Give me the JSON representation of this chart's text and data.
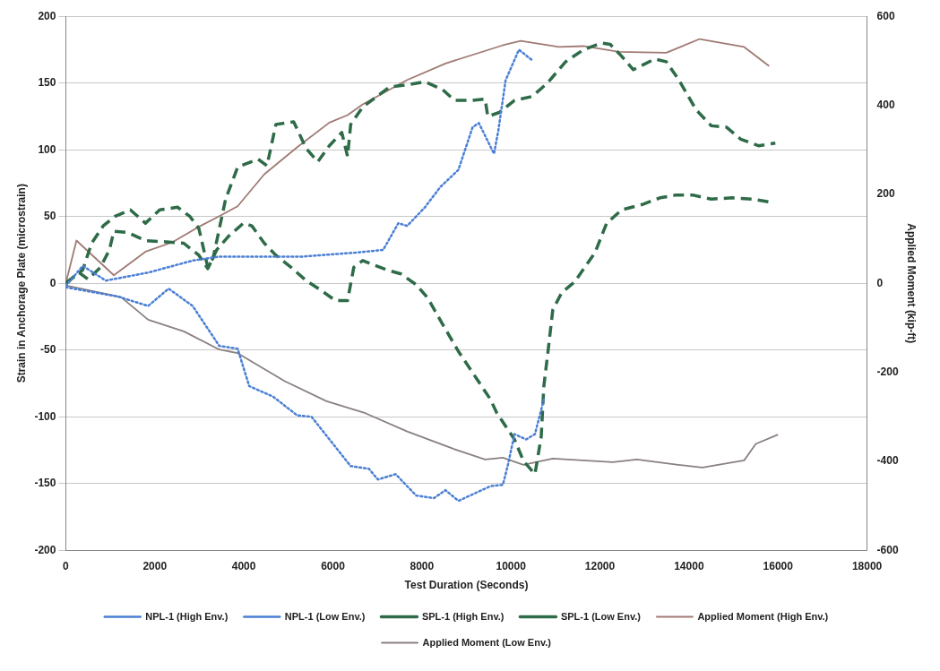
{
  "chart_data": {
    "type": "line",
    "xlabel": "Test Duration (Seconds)",
    "ylabel": "Strain in Anchorage Plate (microstrain)",
    "y2label": "Applied Moment (kip-ft)",
    "xlim": [
      0,
      18000
    ],
    "xticks": [
      0,
      2000,
      4000,
      6000,
      8000,
      10000,
      12000,
      14000,
      16000,
      18000
    ],
    "ylim": [
      -200,
      200
    ],
    "yticks": [
      -200,
      -150,
      -100,
      -50,
      0,
      50,
      100,
      150,
      200
    ],
    "y2lim": [
      -600,
      600
    ],
    "y2ticks": [
      -600,
      -400,
      -200,
      0,
      200,
      400,
      600
    ],
    "grid": "y",
    "legend": "bottom",
    "marker": "none",
    "series": [
      {
        "name": "NPL-1 (High Env.)",
        "color": "#4a7fd4",
        "line_style": "dotted",
        "x": [
          0,
          380,
          900,
          1850,
          2850,
          3450,
          4520,
          5320,
          6530,
          7130,
          7470,
          7670,
          8070,
          8410,
          8820,
          9140,
          9280,
          9620,
          9720,
          9880,
          10180,
          10480
        ],
        "values": [
          -2,
          13,
          2,
          8,
          17,
          20,
          20,
          20,
          23,
          25,
          45,
          43,
          57,
          72,
          85,
          117,
          120,
          97,
          115,
          152,
          175,
          167
        ]
      },
      {
        "name": "NPL-1 (Low Env.)",
        "color": "#4a7fd4",
        "line_style": "dotted",
        "x": [
          0,
          1180,
          1850,
          2310,
          2850,
          3450,
          3860,
          4120,
          4660,
          5200,
          5520,
          6400,
          6810,
          7010,
          7410,
          7870,
          8270,
          8530,
          8820,
          9540,
          9820,
          9940,
          10080,
          10340,
          10540,
          10740
        ],
        "values": [
          -3,
          -10,
          -17,
          -4,
          -17,
          -47,
          -49,
          -77,
          -85,
          -99,
          -100,
          -137,
          -139,
          -147,
          -143,
          -159,
          -161,
          -155,
          -163,
          -152,
          -151,
          -135,
          -113,
          -117,
          -113,
          -87
        ]
      },
      {
        "name": "SPL-1 (High Env.)",
        "color": "#2e6b48",
        "line_style": "dashed",
        "x": [
          0,
          380,
          580,
          840,
          1100,
          1450,
          1790,
          2110,
          2510,
          2790,
          2990,
          3190,
          3310,
          3590,
          3860,
          4320,
          4520,
          4720,
          5120,
          5400,
          5660,
          5920,
          6200,
          6330,
          6400,
          6670,
          7270,
          7730,
          8070,
          8470,
          8730,
          9140,
          9420,
          9480,
          9740,
          10080,
          10480,
          10820,
          11230,
          11630,
          12030,
          12230,
          12490,
          12750,
          13230,
          13490,
          13760,
          14160,
          14500,
          14840,
          15160,
          15560,
          15940
        ],
        "values": [
          0,
          10,
          30,
          43,
          50,
          55,
          45,
          55,
          57,
          50,
          41,
          12,
          19,
          63,
          87,
          93,
          88,
          119,
          121,
          101,
          91,
          103,
          113,
          95,
          119,
          132,
          147,
          149,
          151,
          145,
          137,
          137,
          138,
          125,
          128,
          137,
          140,
          150,
          166,
          175,
          180,
          179,
          170,
          160,
          168,
          166,
          153,
          130,
          118,
          117,
          108,
          103,
          105
        ]
      },
      {
        "name": "SPL-1 (Low Env.)",
        "color": "#2e6b48",
        "line_style": "dashed",
        "x": [
          0,
          300,
          500,
          780,
          980,
          1080,
          1390,
          1790,
          2250,
          2650,
          2990,
          3190,
          3390,
          3650,
          3990,
          4180,
          4460,
          4720,
          5060,
          5400,
          5720,
          6060,
          6330,
          6470,
          6670,
          7210,
          7530,
          7870,
          8130,
          8470,
          8820,
          9220,
          9540,
          9680,
          10080,
          10280,
          10540,
          10680,
          10740,
          10840,
          10940,
          11140,
          11430,
          11890,
          12150,
          12490,
          12950,
          13350,
          13690,
          14100,
          14500,
          14960,
          15440,
          15800
        ],
        "values": [
          0,
          8,
          3,
          12,
          25,
          39,
          38,
          32,
          31,
          30,
          21,
          11,
          25,
          35,
          45,
          43,
          30,
          21,
          12,
          2,
          -5,
          -13,
          -13,
          12,
          17,
          10,
          7,
          -1,
          -11,
          -31,
          -51,
          -71,
          -87,
          -97,
          -117,
          -133,
          -143,
          -115,
          -77,
          -49,
          -20,
          -7,
          1,
          23,
          45,
          55,
          59,
          64,
          66,
          66,
          63,
          64,
          63,
          61
        ]
      },
      {
        "name": "Applied Moment (High Env.)",
        "color": "#a07a74",
        "line_style": "solid",
        "axis": "y2",
        "x": [
          0,
          240,
          1080,
          1790,
          2390,
          2990,
          3450,
          3860,
          4460,
          5200,
          5920,
          6330,
          6670,
          7670,
          8530,
          9820,
          10220,
          11080,
          11630,
          12430,
          13490,
          14240,
          15240,
          15800
        ],
        "values": [
          0,
          96,
          18,
          71,
          92,
          127,
          151,
          173,
          245,
          306,
          361,
          378,
          402,
          457,
          494,
          535,
          545,
          531,
          533,
          520,
          518,
          549,
          531,
          488
        ]
      },
      {
        "name": "Applied Moment (Low Env.)",
        "color": "#8a8080",
        "line_style": "solid",
        "axis": "y2",
        "x": [
          0,
          1240,
          1850,
          2650,
          3450,
          3860,
          4920,
          5860,
          6730,
          7670,
          8730,
          9420,
          9820,
          10280,
          10940,
          12290,
          12830,
          13760,
          14300,
          15240,
          15500,
          16000
        ],
        "values": [
          -5,
          -31,
          -82,
          -108,
          -149,
          -157,
          -220,
          -265,
          -292,
          -333,
          -373,
          -396,
          -392,
          -408,
          -394,
          -402,
          -396,
          -408,
          -414,
          -398,
          -361,
          -340
        ]
      }
    ]
  }
}
